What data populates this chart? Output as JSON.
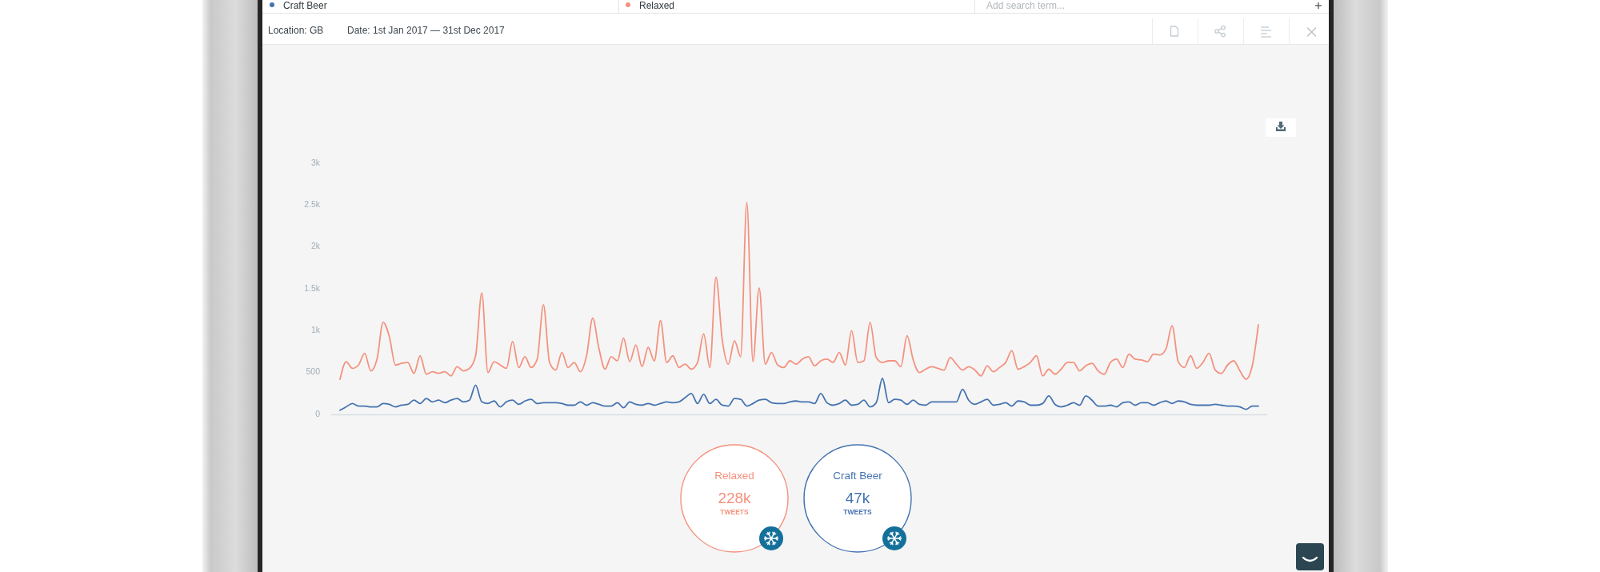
{
  "chart_data": {
    "type": "line",
    "categories": [
      null,
      null,
      null,
      null,
      null,
      null,
      null,
      null,
      null,
      null,
      null,
      null,
      null,
      null,
      null,
      null,
      null,
      null,
      null,
      null,
      null,
      null,
      null,
      null,
      null,
      null,
      null,
      null,
      null,
      null,
      null,
      null,
      null,
      null,
      null,
      null,
      null,
      null,
      null,
      null,
      null,
      null,
      null,
      null,
      null,
      null,
      null,
      null,
      null,
      null,
      null,
      null,
      null,
      null,
      null,
      null,
      null,
      null,
      null,
      null,
      null,
      null,
      null,
      null,
      null,
      null,
      null,
      null,
      null,
      null,
      null,
      null,
      null,
      null,
      null,
      null,
      null,
      null,
      null,
      null,
      null,
      null,
      null,
      null,
      null,
      null,
      null,
      null,
      null,
      null,
      null,
      null,
      null,
      null,
      null,
      null,
      null,
      null,
      null,
      null,
      null,
      null,
      null,
      null,
      null,
      null,
      null,
      null,
      null,
      null,
      null,
      null,
      null,
      null,
      null,
      null,
      null,
      null,
      null,
      null,
      null,
      null,
      null,
      null,
      null,
      null,
      null,
      null,
      null,
      null,
      null,
      null,
      null,
      null,
      null,
      null,
      null,
      null,
      null,
      null,
      null,
      null,
      null,
      null,
      null,
      null,
      null,
      null,
      null,
      null
    ],
    "series": [
      {
        "name": "Craft Beer",
        "color": "#4573b0",
        "values": [
          50,
          90,
          130,
          100,
          100,
          90,
          90,
          130,
          120,
          90,
          110,
          120,
          170,
          130,
          190,
          150,
          170,
          140,
          170,
          190,
          150,
          170,
          350,
          150,
          130,
          160,
          90,
          150,
          170,
          120,
          160,
          180,
          130,
          140,
          140,
          140,
          130,
          110,
          110,
          150,
          110,
          140,
          120,
          100,
          100,
          140,
          80,
          150,
          120,
          110,
          130,
          110,
          130,
          150,
          140,
          150,
          200,
          250,
          130,
          240,
          130,
          180,
          110,
          100,
          190,
          180,
          100,
          130,
          170,
          180,
          140,
          130,
          130,
          150,
          160,
          150,
          150,
          130,
          250,
          140,
          110,
          130,
          170,
          110,
          120,
          170,
          90,
          140,
          430,
          140,
          180,
          170,
          120,
          170,
          120,
          110,
          150,
          150,
          150,
          150,
          150,
          300,
          170,
          120,
          150,
          180,
          110,
          120,
          140,
          100,
          160,
          150,
          110,
          110,
          130,
          220,
          120,
          90,
          110,
          140,
          110,
          220,
          170,
          100,
          100,
          110,
          90,
          140,
          150,
          110,
          140,
          140,
          110,
          140,
          160,
          130,
          160,
          150,
          120,
          110,
          110,
          110,
          120,
          110,
          100,
          100,
          90,
          60,
          100,
          100
        ]
      },
      {
        "name": "Relaxed",
        "color": "#f4927e",
        "values": [
          420,
          630,
          550,
          590,
          730,
          520,
          660,
          1100,
          930,
          590,
          610,
          620,
          490,
          700,
          480,
          510,
          490,
          510,
          460,
          570,
          520,
          550,
          700,
          1450,
          500,
          630,
          590,
          550,
          870,
          560,
          690,
          560,
          660,
          1310,
          620,
          530,
          740,
          560,
          620,
          510,
          700,
          1150,
          790,
          540,
          690,
          640,
          910,
          630,
          830,
          570,
          800,
          640,
          1120,
          620,
          700,
          560,
          600,
          540,
          620,
          960,
          560,
          1640,
          900,
          600,
          880,
          690,
          2530,
          630,
          1510,
          600,
          740,
          590,
          560,
          640,
          600,
          660,
          690,
          580,
          640,
          660,
          620,
          740,
          590,
          1000,
          620,
          640,
          1100,
          680,
          620,
          640,
          640,
          570,
          940,
          650,
          500,
          540,
          570,
          550,
          530,
          680,
          600,
          530,
          570,
          530,
          460,
          580,
          510,
          560,
          620,
          760,
          540,
          570,
          620,
          700,
          460,
          540,
          480,
          540,
          620,
          620,
          520,
          580,
          610,
          520,
          480,
          620,
          660,
          560,
          720,
          660,
          650,
          630,
          720,
          710,
          780,
          1060,
          630,
          560,
          700,
          550,
          620,
          730,
          530,
          490,
          590,
          640,
          520,
          420,
          580,
          1070
        ]
      }
    ],
    "ylim": [
      0,
      3000
    ],
    "yticks": [
      0,
      500,
      {
        "value": 1000,
        "label": "1k"
      },
      {
        "value": 1500,
        "label": "1.5k"
      },
      {
        "value": 2000,
        "label": "2k"
      },
      {
        "value": 2500,
        "label": "2.5k"
      },
      {
        "value": 3000,
        "label": "3k"
      }
    ],
    "legend": "top",
    "annotations": [
      "Location: GB",
      "Date: 1st Jan 2017 — 31st Dec 2017",
      "Add search term...",
      "228k",
      "TWEETS",
      "47k",
      "TWEETS"
    ]
  }
}
